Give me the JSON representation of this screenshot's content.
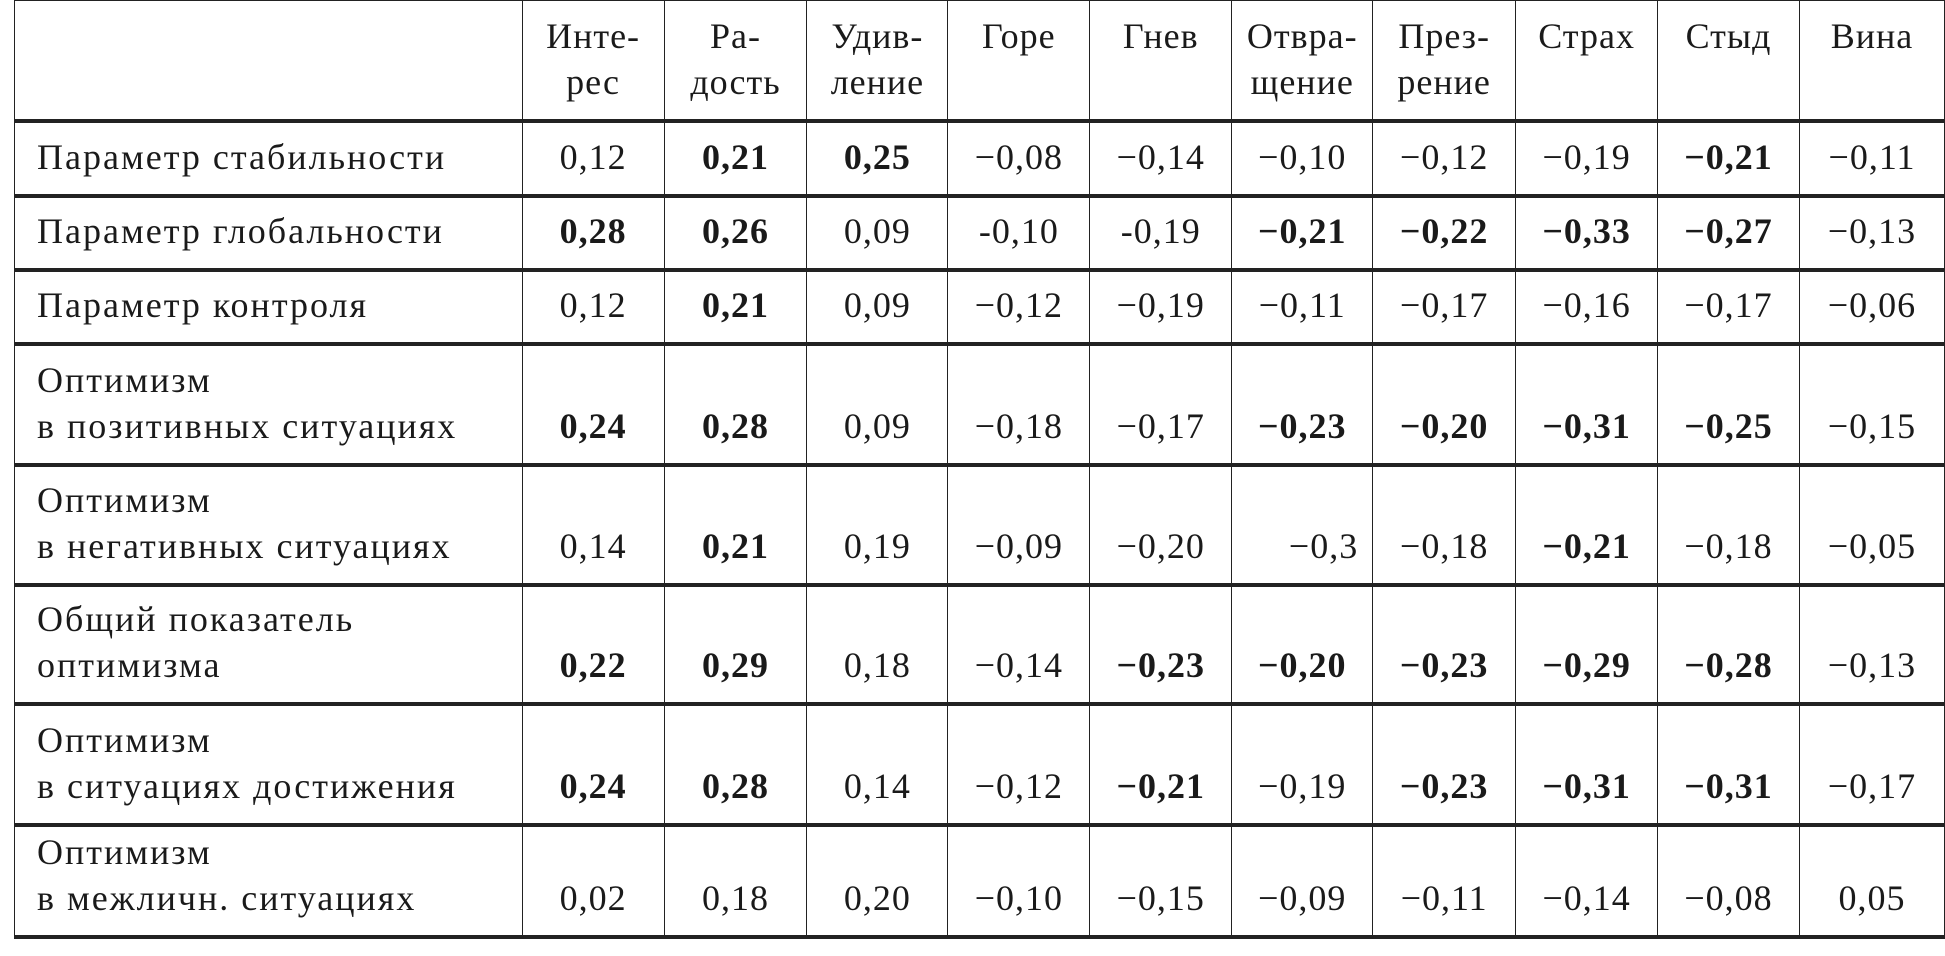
{
  "table": {
    "columns": [
      [
        "Инте-",
        "рес"
      ],
      [
        "Ра-",
        "дость"
      ],
      [
        "Удив-",
        "ление"
      ],
      [
        "Горе"
      ],
      [
        "Гнев"
      ],
      [
        "Отвра-",
        "щение"
      ],
      [
        "През-",
        "рение"
      ],
      [
        "Страх"
      ],
      [
        "Стыд"
      ],
      [
        "Вина"
      ]
    ],
    "rows": [
      {
        "label": [
          "Параметр стабильности"
        ],
        "cells": [
          {
            "v": "0,12",
            "b": false
          },
          {
            "v": "0,21",
            "b": true
          },
          {
            "v": "0,25",
            "b": true
          },
          {
            "v": "−0,08",
            "b": false
          },
          {
            "v": "−0,14",
            "b": false
          },
          {
            "v": "−0,10",
            "b": false
          },
          {
            "v": "−0,12",
            "b": false
          },
          {
            "v": "−0,19",
            "b": false
          },
          {
            "v": "−0,21",
            "b": true
          },
          {
            "v": "−0,11",
            "b": false
          }
        ]
      },
      {
        "label": [
          "Параметр глобальности"
        ],
        "cells": [
          {
            "v": "0,28",
            "b": true
          },
          {
            "v": "0,26",
            "b": true
          },
          {
            "v": "0,09",
            "b": false
          },
          {
            "v": "-0,10",
            "b": false
          },
          {
            "v": "-0,19",
            "b": false
          },
          {
            "v": "−0,21",
            "b": true
          },
          {
            "v": "−0,22",
            "b": true
          },
          {
            "v": "−0,33",
            "b": true
          },
          {
            "v": "−0,27",
            "b": true
          },
          {
            "v": "−0,13",
            "b": false
          }
        ]
      },
      {
        "label": [
          "Параметр контроля"
        ],
        "cells": [
          {
            "v": "0,12",
            "b": false
          },
          {
            "v": "0,21",
            "b": true
          },
          {
            "v": "0,09",
            "b": false
          },
          {
            "v": "−0,12",
            "b": false
          },
          {
            "v": "−0,19",
            "b": false
          },
          {
            "v": "−0,11",
            "b": false
          },
          {
            "v": "−0,17",
            "b": false
          },
          {
            "v": "−0,16",
            "b": false
          },
          {
            "v": "−0,17",
            "b": false
          },
          {
            "v": "−0,06",
            "b": false
          }
        ]
      },
      {
        "label": [
          "Оптимизм",
          "в позитивных ситуациях"
        ],
        "cells": [
          {
            "v": "0,24",
            "b": true
          },
          {
            "v": "0,28",
            "b": true
          },
          {
            "v": "0,09",
            "b": false
          },
          {
            "v": "−0,18",
            "b": false
          },
          {
            "v": "−0,17",
            "b": false
          },
          {
            "v": "−0,23",
            "b": true
          },
          {
            "v": "−0,20",
            "b": true
          },
          {
            "v": "−0,31",
            "b": true
          },
          {
            "v": "−0,25",
            "b": true
          },
          {
            "v": "−0,15",
            "b": false
          }
        ]
      },
      {
        "label": [
          "Оптимизм",
          "в негативных ситуациях"
        ],
        "cells": [
          {
            "v": "0,14",
            "b": false
          },
          {
            "v": "0,21",
            "b": true
          },
          {
            "v": "0,19",
            "b": false
          },
          {
            "v": "−0,09",
            "b": false
          },
          {
            "v": "−0,20",
            "b": false
          },
          {
            "v": "−0,3",
            "b": false
          },
          {
            "v": "−0,18",
            "b": false
          },
          {
            "v": "−0,21",
            "b": true
          },
          {
            "v": "−0,18",
            "b": false
          },
          {
            "v": "−0,05",
            "b": false
          }
        ]
      },
      {
        "label": [
          "Общий показатель",
          "оптимизма"
        ],
        "cells": [
          {
            "v": "0,22",
            "b": true
          },
          {
            "v": "0,29",
            "b": true
          },
          {
            "v": "0,18",
            "b": false
          },
          {
            "v": "−0,14",
            "b": false
          },
          {
            "v": "−0,23",
            "b": true
          },
          {
            "v": "−0,20",
            "b": true
          },
          {
            "v": "−0,23",
            "b": true
          },
          {
            "v": "−0,29",
            "b": true
          },
          {
            "v": "−0,28",
            "b": true
          },
          {
            "v": "−0,13",
            "b": false
          }
        ]
      },
      {
        "label": [
          "Оптимизм",
          "в ситуациях достижения"
        ],
        "cells": [
          {
            "v": "0,24",
            "b": true
          },
          {
            "v": "0,28",
            "b": true
          },
          {
            "v": "0,14",
            "b": false
          },
          {
            "v": "−0,12",
            "b": false
          },
          {
            "v": "−0,21",
            "b": true
          },
          {
            "v": "−0,19",
            "b": false
          },
          {
            "v": "−0,23",
            "b": true
          },
          {
            "v": "−0,31",
            "b": true
          },
          {
            "v": "−0,31",
            "b": true
          },
          {
            "v": "−0,17",
            "b": false
          }
        ]
      },
      {
        "label": [
          "Оптимизм",
          "в межличн. ситуациях"
        ],
        "cells": [
          {
            "v": "0,02",
            "b": false
          },
          {
            "v": "0,18",
            "b": false
          },
          {
            "v": "0,20",
            "b": false
          },
          {
            "v": "−0,10",
            "b": false
          },
          {
            "v": "−0,15",
            "b": false
          },
          {
            "v": "−0,09",
            "b": false
          },
          {
            "v": "−0,11",
            "b": false
          },
          {
            "v": "−0,14",
            "b": false
          },
          {
            "v": "−0,08",
            "b": false
          },
          {
            "v": "0,05",
            "b": false
          }
        ]
      }
    ]
  }
}
